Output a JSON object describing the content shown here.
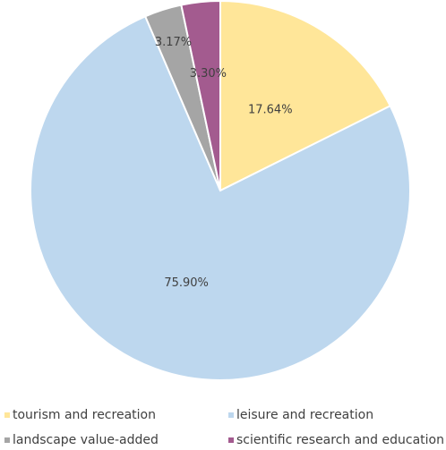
{
  "chart_data": {
    "type": "pie",
    "categories": [
      "tourism and recreation",
      "leisure and recreation",
      "landscape value-added",
      "scientific research and education"
    ],
    "values": [
      17.64,
      75.9,
      3.17,
      3.3
    ],
    "value_labels": [
      "17.64%",
      "75.90%",
      "3.17%",
      "3.30%"
    ],
    "colors": [
      "#ffe699",
      "#bdd7ee",
      "#a5a5a5",
      "#a35b8f"
    ]
  }
}
